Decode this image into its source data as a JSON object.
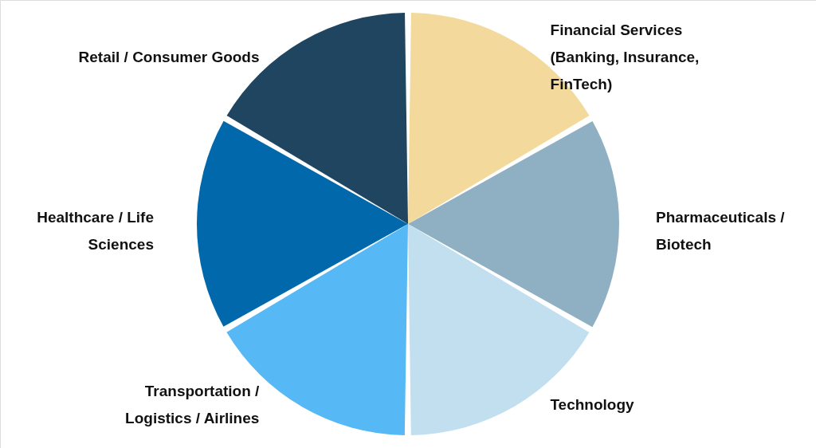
{
  "chart_data": {
    "type": "pie",
    "categories": [
      "Financial Services (Banking, Insurance, FinTech)",
      "Pharmaceuticals / Biotech",
      "Technology",
      "Transportation / Logistics / Airlines",
      "Healthcare / Life Sciences",
      "Retail / Consumer Goods"
    ],
    "values": [
      16.67,
      16.67,
      16.67,
      16.67,
      16.66,
      16.66
    ],
    "colors": [
      "#f3d99b",
      "#8fafc2",
      "#c2dff0",
      "#56b9f5",
      "#0068ab",
      "#1f4560"
    ]
  }
}
